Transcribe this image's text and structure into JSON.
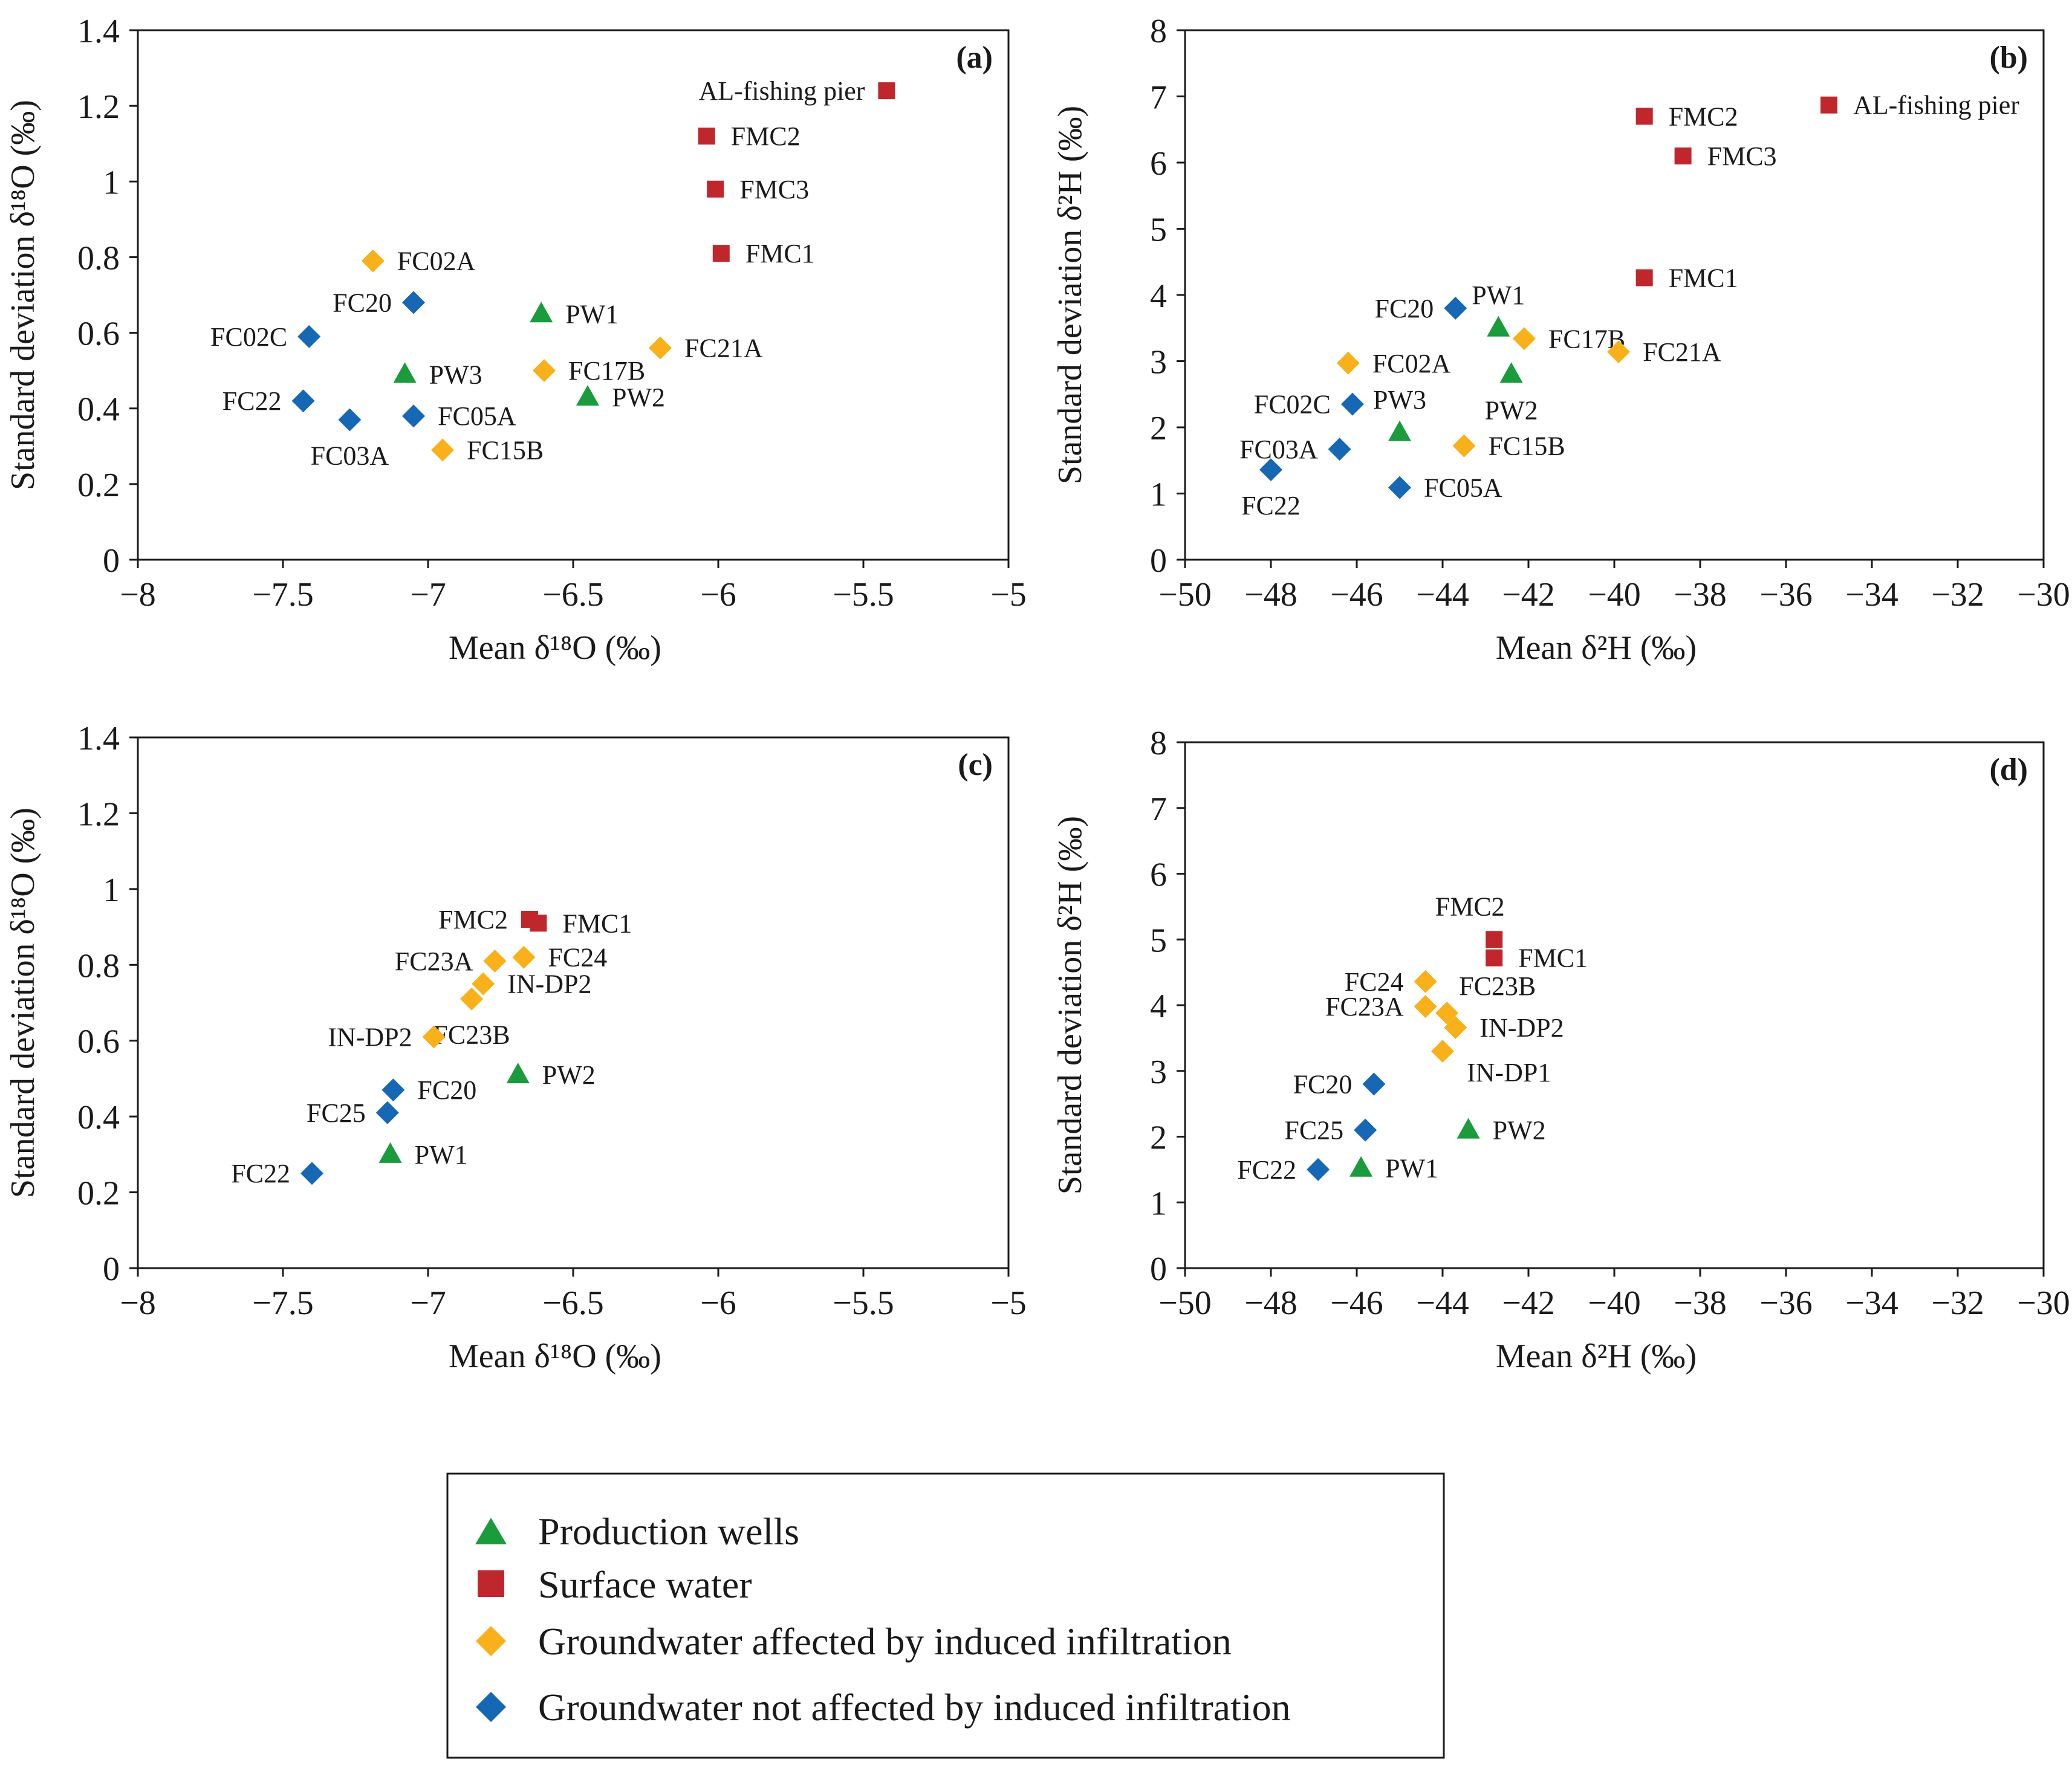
{
  "legend": {
    "items": [
      {
        "key": "prod",
        "label": "Production wells"
      },
      {
        "key": "surf",
        "label": "Surface water"
      },
      {
        "key": "gwa",
        "label": "Groundwater affected by induced infiltration"
      },
      {
        "key": "gwn",
        "label": "Groundwater not affected by induced infiltration"
      }
    ]
  },
  "colors": {
    "prod": "#1a9b3c",
    "surf": "#c0272d",
    "gwa": "#f9b11b",
    "gwn": "#1668b5"
  },
  "chart_data": [
    {
      "type": "scatter",
      "panel": "(a)",
      "xlabel": "Mean δ¹⁸O (‰)",
      "ylabel": "Standard deviation δ¹⁸O (‰)",
      "xlim": [
        -8,
        -5
      ],
      "ylim": [
        0,
        1.4
      ],
      "xticks": [
        -8,
        -7.5,
        -7,
        -6.5,
        -6,
        -5.5,
        -5
      ],
      "xtick_labels": [
        "−8",
        "−7.5",
        "−7",
        "−6.5",
        "−6",
        "−5.5",
        "−5"
      ],
      "yticks": [
        0,
        0.2,
        0.4,
        0.6,
        0.8,
        1,
        1.2,
        1.4
      ],
      "ytick_labels": [
        "0",
        "0.2",
        "0.4",
        "0.6",
        "0.8",
        "1",
        "1.2",
        "1.4"
      ],
      "points": [
        {
          "label": "AL-fishing pier",
          "x": -5.42,
          "y": 1.24,
          "group": "surf",
          "lpos": "left"
        },
        {
          "label": "FMC2",
          "x": -6.04,
          "y": 1.12,
          "group": "surf",
          "lpos": "right"
        },
        {
          "label": "FMC3",
          "x": -6.01,
          "y": 0.98,
          "group": "surf",
          "lpos": "right"
        },
        {
          "label": "FMC1",
          "x": -5.99,
          "y": 0.81,
          "group": "surf",
          "lpos": "right"
        },
        {
          "label": "FC02A",
          "x": -7.19,
          "y": 0.79,
          "group": "gwa",
          "lpos": "right"
        },
        {
          "label": "FC20",
          "x": -7.05,
          "y": 0.68,
          "group": "gwn",
          "lpos": "left"
        },
        {
          "label": "FC02C",
          "x": -7.41,
          "y": 0.59,
          "group": "gwn",
          "lpos": "left"
        },
        {
          "label": "PW1",
          "x": -6.61,
          "y": 0.65,
          "group": "prod",
          "lpos": "right"
        },
        {
          "label": "FC21A",
          "x": -6.2,
          "y": 0.56,
          "group": "gwa",
          "lpos": "right"
        },
        {
          "label": "PW3",
          "x": -7.08,
          "y": 0.49,
          "group": "prod",
          "lpos": "right"
        },
        {
          "label": "FC17B",
          "x": -6.6,
          "y": 0.5,
          "group": "gwa",
          "lpos": "right"
        },
        {
          "label": "PW2",
          "x": -6.45,
          "y": 0.43,
          "group": "prod",
          "lpos": "right"
        },
        {
          "label": "FC22",
          "x": -7.43,
          "y": 0.42,
          "group": "gwn",
          "lpos": "left"
        },
        {
          "label": "FC05A",
          "x": -7.05,
          "y": 0.38,
          "group": "gwn",
          "lpos": "right"
        },
        {
          "label": "FC03A",
          "x": -7.27,
          "y": 0.37,
          "group": "gwn",
          "lpos": "below"
        },
        {
          "label": "FC15B",
          "x": -6.95,
          "y": 0.29,
          "group": "gwa",
          "lpos": "right"
        }
      ]
    },
    {
      "type": "scatter",
      "panel": "(b)",
      "xlabel": "Mean δ²H (‰)",
      "ylabel": "Standard deviation δ²H (‰)",
      "xlim": [
        -50,
        -30
      ],
      "ylim": [
        0,
        8
      ],
      "xticks": [
        -50,
        -48,
        -46,
        -44,
        -42,
        -40,
        -38,
        -36,
        -34,
        -32,
        -30
      ],
      "xtick_labels": [
        "−50",
        "−48",
        "−46",
        "−44",
        "−42",
        "−40",
        "−38",
        "−36",
        "−34",
        "−32",
        "−30"
      ],
      "yticks": [
        0,
        1,
        2,
        3,
        4,
        5,
        6,
        7,
        8
      ],
      "ytick_labels": [
        "0",
        "1",
        "2",
        "3",
        "4",
        "5",
        "6",
        "7",
        "8"
      ],
      "points": [
        {
          "label": "AL-fishing pier",
          "x": -35.0,
          "y": 6.87,
          "group": "surf",
          "lpos": "right"
        },
        {
          "label": "FMC2",
          "x": -39.3,
          "y": 6.7,
          "group": "surf",
          "lpos": "right"
        },
        {
          "label": "FMC3",
          "x": -38.4,
          "y": 6.1,
          "group": "surf",
          "lpos": "right"
        },
        {
          "label": "FMC1",
          "x": -39.3,
          "y": 4.26,
          "group": "surf",
          "lpos": "right"
        },
        {
          "label": "FC20",
          "x": -43.7,
          "y": 3.8,
          "group": "gwn",
          "lpos": "left"
        },
        {
          "label": "PW1",
          "x": -42.7,
          "y": 3.5,
          "group": "prod",
          "lpos": "above"
        },
        {
          "label": "FC17B",
          "x": -42.1,
          "y": 3.34,
          "group": "gwa",
          "lpos": "right"
        },
        {
          "label": "FC21A",
          "x": -39.9,
          "y": 3.14,
          "group": "gwa",
          "lpos": "right"
        },
        {
          "label": "FC02A",
          "x": -46.2,
          "y": 2.97,
          "group": "gwa",
          "lpos": "right"
        },
        {
          "label": "PW2",
          "x": -42.4,
          "y": 2.8,
          "group": "prod",
          "lpos": "below"
        },
        {
          "label": "FC02C",
          "x": -46.1,
          "y": 2.35,
          "group": "gwn",
          "lpos": "left"
        },
        {
          "label": "PW3",
          "x": -45.0,
          "y": 1.92,
          "group": "prod",
          "lpos": "above"
        },
        {
          "label": "FC15B",
          "x": -43.5,
          "y": 1.72,
          "group": "gwa",
          "lpos": "right"
        },
        {
          "label": "FC03A",
          "x": -46.4,
          "y": 1.67,
          "group": "gwn",
          "lpos": "left"
        },
        {
          "label": "FC22",
          "x": -48.0,
          "y": 1.36,
          "group": "gwn",
          "lpos": "below"
        },
        {
          "label": "FC05A",
          "x": -45.0,
          "y": 1.09,
          "group": "gwn",
          "lpos": "right"
        }
      ]
    },
    {
      "type": "scatter",
      "panel": "(c)",
      "xlabel": "Mean δ¹⁸O (‰)",
      "ylabel": "Standard deviation δ¹⁸O (‰)",
      "xlim": [
        -8,
        -5
      ],
      "ylim": [
        0,
        1.4
      ],
      "xticks": [
        -8,
        -7.5,
        -7,
        -6.5,
        -6,
        -5.5,
        -5
      ],
      "xtick_labels": [
        "−8",
        "−7.5",
        "−7",
        "−6.5",
        "−6",
        "−5.5",
        "−5"
      ],
      "yticks": [
        0,
        0.2,
        0.4,
        0.6,
        0.8,
        1,
        1.2,
        1.4
      ],
      "ytick_labels": [
        "0",
        "0.2",
        "0.4",
        "0.6",
        "0.8",
        "1",
        "1.2",
        "1.4"
      ],
      "points": [
        {
          "label": "FMC2",
          "x": -6.65,
          "y": 0.92,
          "group": "surf",
          "lpos": "left"
        },
        {
          "label": "FMC1",
          "x": -6.62,
          "y": 0.91,
          "group": "surf",
          "lpos": "right"
        },
        {
          "label": "FC23A",
          "x": -6.77,
          "y": 0.81,
          "group": "gwa",
          "lpos": "left"
        },
        {
          "label": "FC24",
          "x": -6.67,
          "y": 0.82,
          "group": "gwa",
          "lpos": "right"
        },
        {
          "label": "IN-DP2",
          "x": -6.81,
          "y": 0.75,
          "group": "gwa",
          "lpos": "right"
        },
        {
          "label": "FC23B",
          "x": -6.85,
          "y": 0.71,
          "group": "gwa",
          "lpos": "below"
        },
        {
          "label": "IN-DP2",
          "x": -6.98,
          "y": 0.61,
          "group": "gwa",
          "lpos": "left"
        },
        {
          "label": "PW2",
          "x": -6.69,
          "y": 0.51,
          "group": "prod",
          "lpos": "right"
        },
        {
          "label": "FC20",
          "x": -7.12,
          "y": 0.47,
          "group": "gwn",
          "lpos": "right"
        },
        {
          "label": "FC25",
          "x": -7.14,
          "y": 0.41,
          "group": "gwn",
          "lpos": "left"
        },
        {
          "label": "PW1",
          "x": -7.13,
          "y": 0.3,
          "group": "prod",
          "lpos": "right"
        },
        {
          "label": "FC22",
          "x": -7.4,
          "y": 0.25,
          "group": "gwn",
          "lpos": "left"
        }
      ]
    },
    {
      "type": "scatter",
      "panel": "(d)",
      "xlabel": "Mean δ²H (‰)",
      "ylabel": "Standard deviation δ²H (‰)",
      "xlim": [
        -50,
        -30
      ],
      "ylim": [
        0,
        8
      ],
      "xticks": [
        -50,
        -48,
        -46,
        -44,
        -42,
        -40,
        -38,
        -36,
        -34,
        -32,
        -30
      ],
      "xtick_labels": [
        "−50",
        "−48",
        "−46",
        "−44",
        "−42",
        "−40",
        "−38",
        "−36",
        "−34",
        "−32",
        "−30"
      ],
      "yticks": [
        0,
        1,
        2,
        3,
        4,
        5,
        6,
        7,
        8
      ],
      "ytick_labels": [
        "0",
        "1",
        "2",
        "3",
        "4",
        "5",
        "6",
        "7",
        "8"
      ],
      "points": [
        {
          "label": "FMC2",
          "x": -42.8,
          "y": 5.0,
          "group": "surf",
          "lpos": "aboveleft"
        },
        {
          "label": "FMC1",
          "x": -42.8,
          "y": 4.72,
          "group": "surf",
          "lpos": "right"
        },
        {
          "label": "FC24",
          "x": -44.4,
          "y": 4.36,
          "group": "gwa",
          "lpos": "left"
        },
        {
          "label": "FC23B",
          "x": -43.9,
          "y": 3.88,
          "group": "gwa",
          "lpos": "aboveright"
        },
        {
          "label": "FC23A",
          "x": -44.4,
          "y": 3.98,
          "group": "gwa",
          "lpos": "left"
        },
        {
          "label": "IN-DP2",
          "x": -43.7,
          "y": 3.66,
          "group": "gwa",
          "lpos": "right"
        },
        {
          "label": "IN-DP1",
          "x": -44.0,
          "y": 3.3,
          "group": "gwa",
          "lpos": "belowright"
        },
        {
          "label": "FC20",
          "x": -45.6,
          "y": 2.8,
          "group": "gwn",
          "lpos": "left"
        },
        {
          "label": "FC25",
          "x": -45.8,
          "y": 2.1,
          "group": "gwn",
          "lpos": "left"
        },
        {
          "label": "PW2",
          "x": -43.4,
          "y": 2.1,
          "group": "prod",
          "lpos": "right"
        },
        {
          "label": "PW1",
          "x": -45.9,
          "y": 1.52,
          "group": "prod",
          "lpos": "right"
        },
        {
          "label": "FC22",
          "x": -46.9,
          "y": 1.5,
          "group": "gwn",
          "lpos": "left"
        }
      ]
    }
  ]
}
